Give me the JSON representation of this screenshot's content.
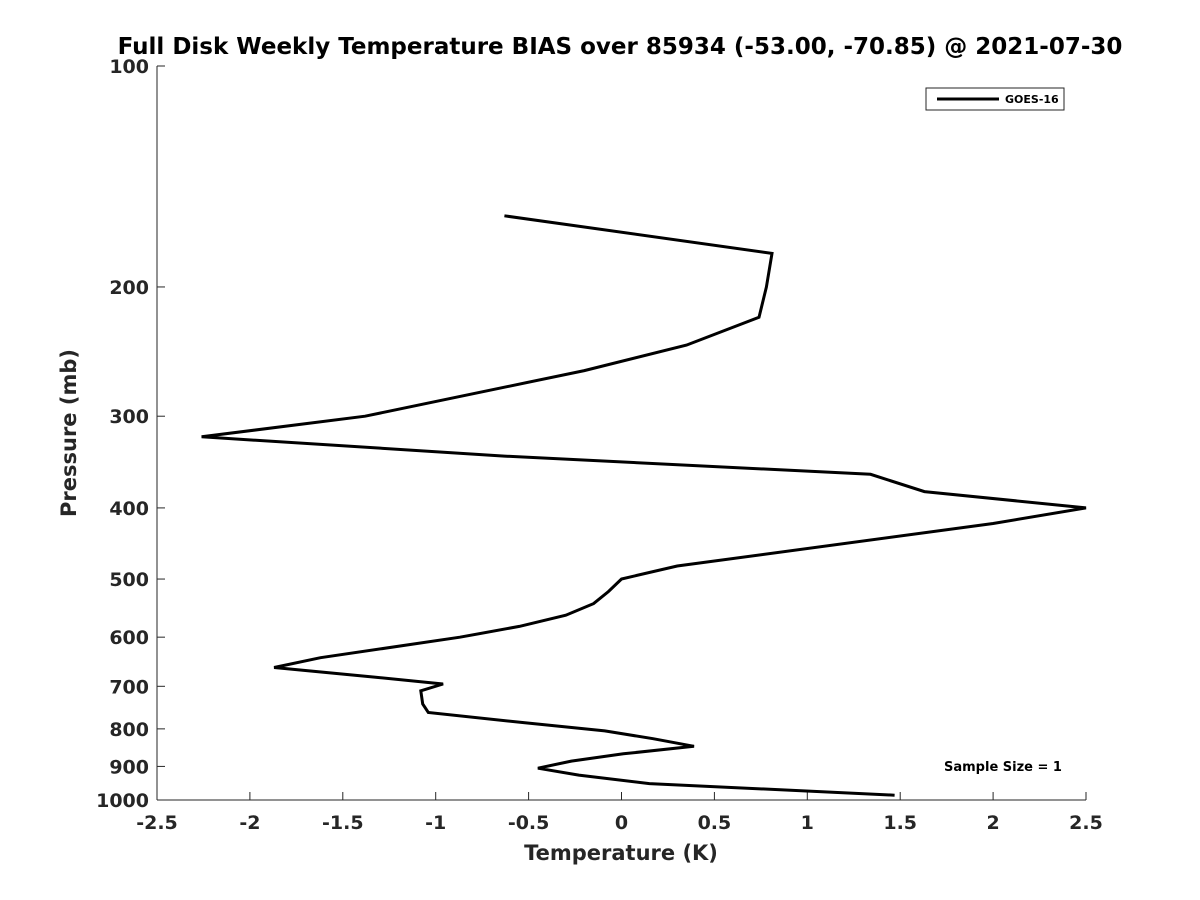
{
  "chart_data": {
    "type": "line",
    "title": "Full Disk Weekly Temperature BIAS over 85934 (-53.00, -70.85) @ 2021-07-30",
    "xlabel": "Temperature (K)",
    "ylabel": "Pressure (mb)",
    "xlim": [
      -2.5,
      2.5
    ],
    "ylim": [
      100,
      1000
    ],
    "y_scale": "log",
    "y_reversed": true,
    "x_ticks": [
      -2.5,
      -2,
      -1.5,
      -1,
      -0.5,
      0,
      0.5,
      1,
      1.5,
      2,
      2.5
    ],
    "x_tick_labels": [
      "-2.5",
      "-2",
      "-1.5",
      "-1",
      "-0.5",
      "0",
      "0.5",
      "1",
      "1.5",
      "2",
      "2.5"
    ],
    "y_ticks": [
      100,
      200,
      300,
      400,
      500,
      600,
      700,
      800,
      900,
      1000
    ],
    "y_tick_labels": [
      "100",
      "200",
      "300",
      "400",
      "500",
      "600",
      "700",
      "800",
      "900",
      "1000"
    ],
    "grid": false,
    "legend_position": "top-right",
    "annotation": "Sample Size = 1",
    "series": [
      {
        "name": "GOES-16",
        "color": "#000000",
        "points": [
          [
            -0.63,
            160
          ],
          [
            0.81,
            180
          ],
          [
            0.78,
            200
          ],
          [
            0.74,
            220
          ],
          [
            0.35,
            240
          ],
          [
            -0.2,
            260
          ],
          [
            -1.38,
            300
          ],
          [
            -2.26,
            320
          ],
          [
            -0.63,
            340
          ],
          [
            1.34,
            360
          ],
          [
            1.63,
            380
          ],
          [
            2.5,
            400
          ],
          [
            2.0,
            420
          ],
          [
            0.3,
            480
          ],
          [
            0.0,
            500
          ],
          [
            -0.07,
            520
          ],
          [
            -0.15,
            540
          ],
          [
            -0.3,
            560
          ],
          [
            -0.55,
            580
          ],
          [
            -0.87,
            600
          ],
          [
            -1.62,
            640
          ],
          [
            -1.87,
            660
          ],
          [
            -1.33,
            680
          ],
          [
            -0.96,
            695
          ],
          [
            -1.08,
            710
          ],
          [
            -1.07,
            740
          ],
          [
            -1.04,
            760
          ],
          [
            -0.52,
            785
          ],
          [
            -0.09,
            805
          ],
          [
            0.17,
            825
          ],
          [
            0.39,
            845
          ],
          [
            0.01,
            865
          ],
          [
            -0.27,
            885
          ],
          [
            -0.45,
            905
          ],
          [
            -0.23,
            925
          ],
          [
            0.15,
            950
          ],
          [
            1.47,
            985
          ]
        ]
      }
    ]
  }
}
